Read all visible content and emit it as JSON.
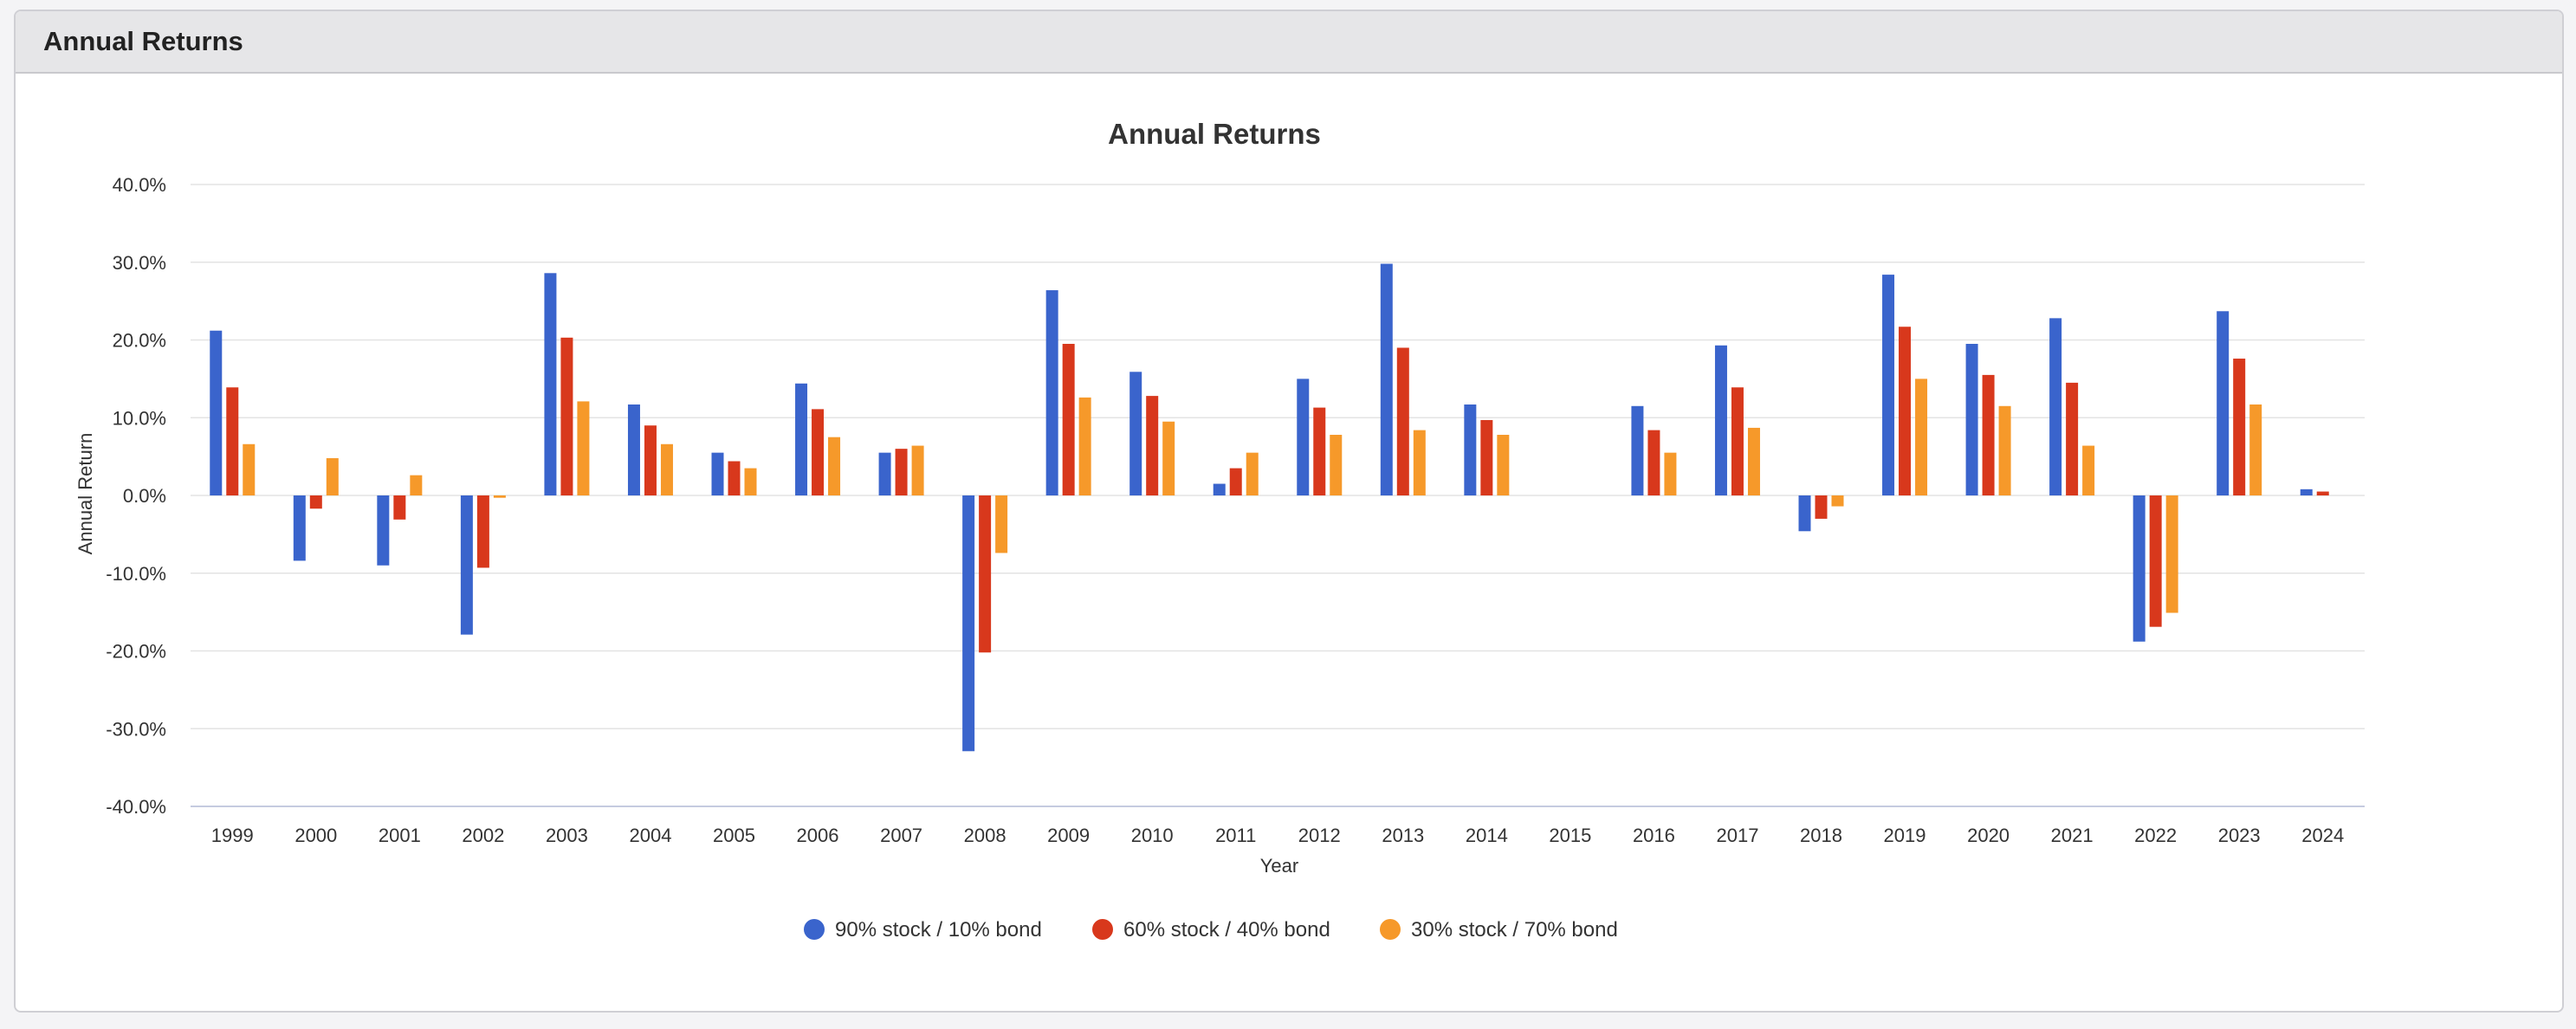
{
  "panel": {
    "title": "Annual Returns"
  },
  "chart_data": {
    "type": "bar",
    "title": "Annual Returns",
    "xlabel": "Year",
    "ylabel": "Annual Return",
    "ylim": [
      -40,
      40
    ],
    "yticks": [
      40,
      30,
      20,
      10,
      0,
      -10,
      -20,
      -30,
      -40
    ],
    "ytick_labels": [
      "40.0%",
      "30.0%",
      "20.0%",
      "10.0%",
      "0.0%",
      "-10.0%",
      "-20.0%",
      "-30.0%",
      "-40.0%"
    ],
    "grid": true,
    "legend_position": "bottom-center",
    "categories": [
      "1999",
      "2000",
      "2001",
      "2002",
      "2003",
      "2004",
      "2005",
      "2006",
      "2007",
      "2008",
      "2009",
      "2010",
      "2011",
      "2012",
      "2013",
      "2014",
      "2015",
      "2016",
      "2017",
      "2018",
      "2019",
      "2020",
      "2021",
      "2022",
      "2023",
      "2024"
    ],
    "series": [
      {
        "name": "90% stock / 10% bond",
        "color": "#3a64cc",
        "values": [
          21.2,
          -8.4,
          -9.0,
          -17.9,
          28.6,
          11.7,
          5.5,
          14.4,
          5.5,
          -32.9,
          26.4,
          15.9,
          1.5,
          15.0,
          29.8,
          11.7,
          0.0,
          11.5,
          19.3,
          -4.6,
          28.4,
          19.5,
          22.8,
          -18.8,
          23.7,
          0.8
        ]
      },
      {
        "name": "60% stock / 40% bond",
        "color": "#d8381c",
        "values": [
          13.9,
          -1.7,
          -3.1,
          -9.3,
          20.3,
          9.0,
          4.4,
          11.1,
          6.0,
          -20.2,
          19.5,
          12.8,
          3.5,
          11.3,
          19.0,
          9.7,
          0.0,
          8.4,
          13.9,
          -3.0,
          21.7,
          15.5,
          14.5,
          -16.9,
          17.6,
          0.5
        ]
      },
      {
        "name": "30% stock / 70% bond",
        "color": "#f6992a",
        "values": [
          6.6,
          4.8,
          2.6,
          -0.3,
          12.1,
          6.6,
          3.5,
          7.5,
          6.4,
          -7.4,
          12.6,
          9.5,
          5.5,
          7.8,
          8.4,
          7.8,
          0.0,
          5.5,
          8.7,
          -1.4,
          15.0,
          11.5,
          6.4,
          -15.1,
          11.7,
          0.0
        ]
      }
    ]
  }
}
